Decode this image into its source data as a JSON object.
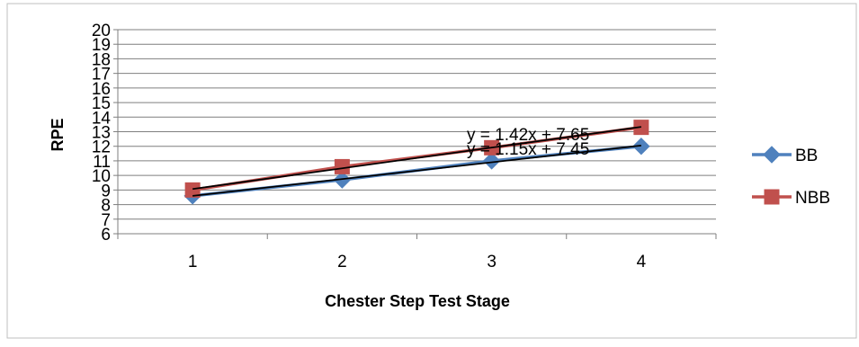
{
  "chart_data": {
    "type": "line",
    "title": "",
    "xlabel": "Chester Step Test Stage",
    "ylabel": "RPE",
    "categories": [
      "1",
      "2",
      "3",
      "4"
    ],
    "ylim": [
      6,
      20
    ],
    "yticks": [
      "6",
      "7",
      "8",
      "9",
      "10",
      "11",
      "12",
      "13",
      "14",
      "15",
      "16",
      "17",
      "18",
      "19",
      "20"
    ],
    "grid": "horizontal",
    "legend_position": "right",
    "series": [
      {
        "name": "BB",
        "values": [
          8.6,
          9.7,
          11.0,
          12.0
        ],
        "color": "#4f81bd",
        "marker": "diamond"
      },
      {
        "name": "NBB",
        "values": [
          9.0,
          10.6,
          11.9,
          13.3
        ],
        "color": "#c0504d",
        "marker": "square"
      }
    ],
    "trendlines": [
      {
        "series": "NBB",
        "slope": 1.42,
        "intercept": 7.65,
        "label": "y = 1.42x + 7.65",
        "color": "#000000"
      },
      {
        "series": "BB",
        "slope": 1.15,
        "intercept": 7.45,
        "label": "y = 1.15x + 7.45",
        "color": "#000000"
      }
    ]
  }
}
